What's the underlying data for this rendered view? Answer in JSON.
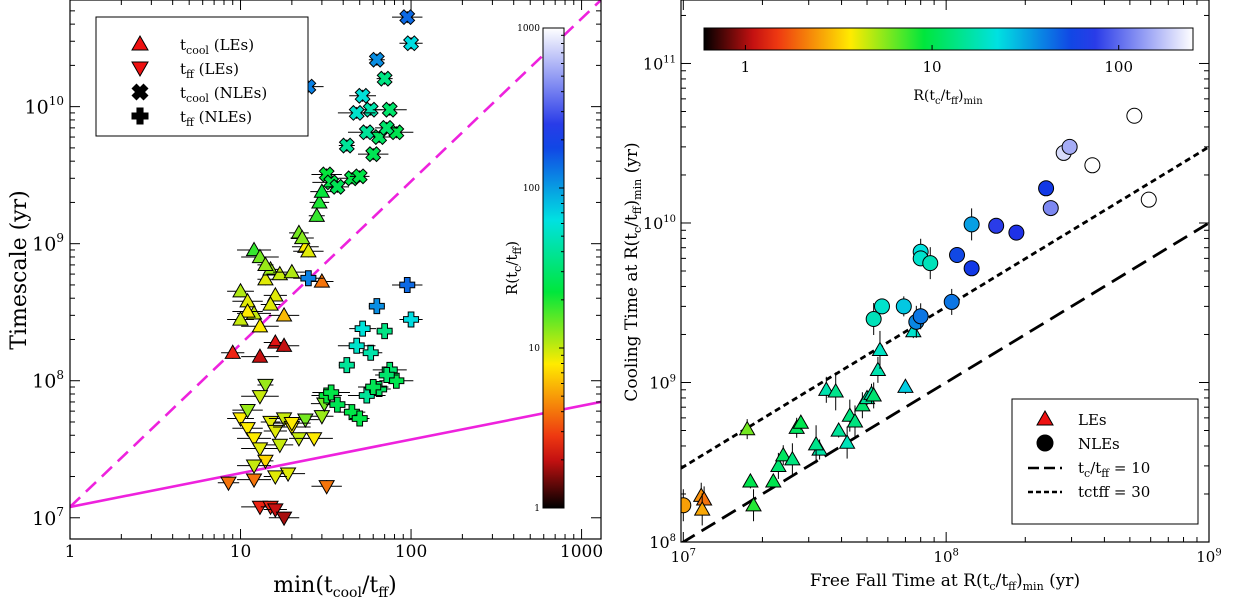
{
  "chart_data": [
    {
      "type": "scatter",
      "xscale": "log",
      "yscale": "log",
      "xlim": [
        1,
        1300
      ],
      "ylim": [
        7000000.0,
        60000000000.0
      ],
      "xlabel": {
        "main": "min(t",
        "sub1": "cool",
        "mid": "/t",
        "sub2": "ff",
        "end": ")"
      },
      "ylabel": "Timescale (yr)",
      "xticks": [
        {
          "v": 1,
          "t": "1"
        },
        {
          "v": 10,
          "t": "10"
        },
        {
          "v": 100,
          "t": "100"
        },
        {
          "v": 1000,
          "t": "1000"
        }
      ],
      "yticks": [
        {
          "v": 10000000.0,
          "b": "10",
          "e": "7"
        },
        {
          "v": 100000000.0,
          "b": "10",
          "e": "8"
        },
        {
          "v": 1000000000.0,
          "b": "10",
          "e": "9"
        },
        {
          "v": 10000000000.0,
          "b": "10",
          "e": "10"
        }
      ],
      "legend": [
        {
          "marker": "triangle-up",
          "color": "#ee1111",
          "main": "t",
          "sub": "cool",
          "rest": " (LEs)"
        },
        {
          "marker": "triangle-down",
          "color": "#ee1111",
          "main": "t",
          "sub": "ff",
          "rest": " (LEs)"
        },
        {
          "marker": "x",
          "color": "#000000",
          "main": "t",
          "sub": "cool",
          "rest": " (NLEs)"
        },
        {
          "marker": "plus",
          "color": "#000000",
          "main": "t",
          "sub": "ff",
          "rest": " (NLEs)"
        }
      ],
      "colorbar": {
        "scale": "log",
        "range": [
          1,
          1000
        ],
        "label": {
          "main": "R(t",
          "sub1": "c",
          "mid": "/t",
          "sub2": "ff",
          "end": ")"
        },
        "ticks": [
          {
            "v": 1,
            "t": "1"
          },
          {
            "v": 10,
            "t": "10"
          },
          {
            "v": 100,
            "t": "100"
          },
          {
            "v": 1000,
            "t": "1000"
          }
        ]
      },
      "lines": [
        {
          "style": "dashed",
          "color": "#ee22dd",
          "x": [
            1,
            1300
          ],
          "y": [
            12000000.0,
            60000000000.0
          ]
        },
        {
          "style": "solid",
          "color": "#ee22dd",
          "x": [
            1,
            1300
          ],
          "y": [
            12000000.0,
            70000000.0
          ]
        }
      ],
      "series": [
        {
          "marker": "triangle-up",
          "points": [
            [
              9,
              160000000.0,
              2.5
            ],
            [
              13,
              150000000.0,
              2.0
            ],
            [
              16,
              190000000.0,
              2.2
            ],
            [
              18,
              180000000.0,
              2.0
            ],
            [
              30,
              530000000.0,
              4.0
            ],
            [
              10,
              450000000.0,
              11
            ],
            [
              11,
              380000000.0,
              9
            ],
            [
              12,
              310000000.0,
              10
            ],
            [
              13,
              250000000.0,
              8
            ],
            [
              14,
              550000000.0,
              9
            ],
            [
              15,
              650000000.0,
              12
            ],
            [
              16,
              420000000.0,
              9
            ],
            [
              12,
              900000000.0,
              18
            ],
            [
              13,
              800000000.0,
              14
            ],
            [
              14,
              700000000.0,
              12
            ],
            [
              17,
              600000000.0,
              10
            ],
            [
              20,
              620000000.0,
              11
            ],
            [
              22,
              1200000000.0,
              14
            ],
            [
              24,
              950000000.0,
              8
            ],
            [
              25,
              880000000.0,
              9
            ],
            [
              28,
              1600000000.0,
              18
            ],
            [
              29,
              2000000000.0,
              20
            ],
            [
              30,
              2400000000.0,
              22
            ],
            [
              11,
              320000000.0,
              8
            ],
            [
              18,
              300000000.0,
              6
            ],
            [
              15,
              360000000.0,
              9
            ],
            [
              10,
              280000000.0,
              10
            ],
            [
              23,
              1100000000.0,
              13
            ]
          ]
        },
        {
          "marker": "triangle-down",
          "points": [
            [
              8.5,
              18000000.0,
              4.0
            ],
            [
              12,
              19000000.0,
              4.0
            ],
            [
              32,
              17000000.0,
              4.0
            ],
            [
              13,
              12000000.0,
              2.5
            ],
            [
              15,
              12000000.0,
              2.5
            ],
            [
              16,
              11500000.0,
              2.0
            ],
            [
              18,
              10000000.0,
              1.8
            ],
            [
              10,
              53000000.0,
              8
            ],
            [
              11,
              45000000.0,
              8
            ],
            [
              12,
              38000000.0,
              8
            ],
            [
              13,
              32000000.0,
              9
            ],
            [
              14,
              26000000.0,
              7
            ],
            [
              15,
              50000000.0,
              9
            ],
            [
              16,
              43000000.0,
              9
            ],
            [
              17,
              34000000.0,
              10
            ],
            [
              18,
              53000000.0,
              10
            ],
            [
              19,
              21000000.0,
              9
            ],
            [
              20,
              46000000.0,
              8
            ],
            [
              22,
              38000000.0,
              10
            ],
            [
              24,
              52000000.0,
              14
            ],
            [
              27,
              38000000.0,
              8
            ],
            [
              30,
              55000000.0,
              12
            ],
            [
              31,
              68000000.0,
              14
            ],
            [
              12,
              24000000.0,
              10
            ],
            [
              14,
              93000000.0,
              12
            ],
            [
              11,
              61000000.0,
              12
            ],
            [
              13,
              77000000.0,
              10
            ],
            [
              20,
              49000000.0,
              8
            ],
            [
              16,
              20000000.0,
              9
            ]
          ]
        },
        {
          "marker": "x",
          "points": [
            [
              25,
              14000000000.0,
              120
            ],
            [
              95,
              45000000000.0,
              140
            ],
            [
              100,
              29000000000.0,
              65
            ],
            [
              63,
              22000000000.0,
              110
            ],
            [
              52,
              12000000000.0,
              60
            ],
            [
              70,
              16000000000.0,
              35
            ],
            [
              58,
              9500000000.0,
              45
            ],
            [
              75,
              9500000000.0,
              30
            ],
            [
              48,
              9000000000.0,
              55
            ],
            [
              82,
              6500000000.0,
              25
            ],
            [
              65,
              6000000000.0,
              28
            ],
            [
              55,
              6500000000.0,
              40
            ],
            [
              42,
              5200000000.0,
              40
            ],
            [
              32,
              3200000000.0,
              22
            ],
            [
              34,
              2800000000.0,
              24
            ],
            [
              37,
              2600000000.0,
              26
            ],
            [
              45,
              3000000000.0,
              24
            ],
            [
              50,
              3100000000.0,
              24
            ],
            [
              60,
              4500000000.0,
              26
            ],
            [
              72,
              7000000000.0,
              30
            ]
          ]
        },
        {
          "marker": "plus",
          "points": [
            [
              25,
              560000000.0,
              120
            ],
            [
              95,
              500000000.0,
              140
            ],
            [
              100,
              280000000.0,
              65
            ],
            [
              63,
              350000000.0,
              110
            ],
            [
              52,
              240000000.0,
              60
            ],
            [
              70,
              230000000.0,
              35
            ],
            [
              58,
              160000000.0,
              45
            ],
            [
              75,
              120000000.0,
              30
            ],
            [
              48,
              180000000.0,
              55
            ],
            [
              82,
              100000000.0,
              25
            ],
            [
              65,
              87000000.0,
              28
            ],
            [
              55,
              78000000.0,
              40
            ],
            [
              42,
              130000000.0,
              40
            ],
            [
              32,
              78000000.0,
              22
            ],
            [
              34,
              82000000.0,
              24
            ],
            [
              37,
              67000000.0,
              26
            ],
            [
              45,
              59000000.0,
              24
            ],
            [
              50,
              53000000.0,
              24
            ],
            [
              60,
              90000000.0,
              26
            ],
            [
              72,
              110000000.0,
              30
            ]
          ]
        }
      ]
    },
    {
      "type": "scatter",
      "xscale": "log",
      "yscale": "log",
      "xlim": [
        9800000.0,
        1000000000.0
      ],
      "ylim": [
        100000000.0,
        250000000000.0
      ],
      "xlabel": {
        "main": "Free Fall Time at R(t",
        "sub1": "c",
        "mid": "/t",
        "sub2": "ff",
        "end": ")",
        "sub3": "min",
        "tail": " (yr)"
      },
      "ylabel": {
        "main": "Cooling Time at R(t",
        "sub1": "c",
        "mid": "/t",
        "sub2": "ff",
        "end": ")",
        "sub3": "min",
        "tail": " (yr)"
      },
      "xticks": [
        {
          "v": 10000000.0,
          "b": "10",
          "e": "7"
        },
        {
          "v": 100000000.0,
          "b": "10",
          "e": "8"
        },
        {
          "v": 1000000000.0,
          "b": "10",
          "e": "9"
        }
      ],
      "yticks": [
        {
          "v": 100000000.0,
          "b": "10",
          "e": "8"
        },
        {
          "v": 1000000000.0,
          "b": "10",
          "e": "9"
        },
        {
          "v": 10000000000.0,
          "b": "10",
          "e": "10"
        },
        {
          "v": 100000000000.0,
          "b": "10",
          "e": "11"
        }
      ],
      "legend": [
        {
          "marker": "triangle-up",
          "color": "#ee1111",
          "text": "LEs"
        },
        {
          "marker": "circle",
          "color": "#000000",
          "text": "NLEs"
        },
        {
          "marker": "long-dash",
          "color": "#000000",
          "main": "t",
          "sub": "c",
          "mid": "/t",
          "sub2": "ff",
          "rest": " = 10"
        },
        {
          "marker": "short-dash",
          "color": "#000000",
          "text": "tctff = 30"
        }
      ],
      "colorbar": {
        "scale": "log",
        "range": [
          0.6,
          250
        ],
        "label": {
          "main": "R(t",
          "sub1": "c",
          "mid": "/t",
          "sub2": "ff",
          "end": ")",
          "sub3": "min"
        },
        "ticks": [
          {
            "v": 1,
            "t": "1"
          },
          {
            "v": 10,
            "t": "10"
          },
          {
            "v": 100,
            "t": "100"
          }
        ]
      },
      "lines": [
        {
          "style": "long-dash",
          "color": "#000000",
          "x": [
            9800000.0,
            1000000000.0
          ],
          "y": [
            98000000.0,
            10000000000.0
          ]
        },
        {
          "style": "short-dash",
          "color": "#000000",
          "x": [
            9800000.0,
            1000000000.0
          ],
          "y": [
            290000000.0,
            30000000000.0
          ]
        }
      ],
      "series": [
        {
          "marker": "triangle-up",
          "points": [
            [
              11700000.0,
              195000000.0,
              2.3
            ],
            [
              12000000.0,
              185000000.0,
              2.0
            ],
            [
              11800000.0,
              160000000.0,
              2.6
            ],
            [
              17500000.0,
              510000000.0,
              6
            ],
            [
              18000000.0,
              240000000.0,
              10
            ],
            [
              18500000.0,
              170000000.0,
              8
            ],
            [
              22000000.0,
              240000000.0,
              10
            ],
            [
              23000000.0,
              300000000.0,
              12
            ],
            [
              24000000.0,
              350000000.0,
              11
            ],
            [
              26000000.0,
              330000000.0,
              13
            ],
            [
              27000000.0,
              520000000.0,
              11
            ],
            [
              28000000.0,
              560000000.0,
              10
            ],
            [
              33000000.0,
              380000000.0,
              16
            ],
            [
              35000000.0,
              900000000.0,
              17
            ],
            [
              38000000.0,
              880000000.0,
              14
            ],
            [
              39000000.0,
              500000000.0,
              15
            ],
            [
              42000000.0,
              420000000.0,
              18
            ],
            [
              43000000.0,
              620000000.0,
              13
            ],
            [
              48000000.0,
              720000000.0,
              12
            ],
            [
              50000000.0,
              800000000.0,
              15
            ],
            [
              52000000.0,
              850000000.0,
              16
            ],
            [
              55000000.0,
              1200000000.0,
              17
            ],
            [
              56000000.0,
              1600000000.0,
              19
            ],
            [
              70000000.0,
              940000000.0,
              25
            ],
            [
              75000000.0,
              2100000000.0,
              20
            ],
            [
              53000000.0,
              830000000.0,
              12
            ],
            [
              32000000.0,
              410000000.0,
              14
            ],
            [
              45000000.0,
              570000000.0,
              13
            ]
          ]
        },
        {
          "marker": "circle",
          "points": [
            [
              10000000.0,
              170000000.0,
              2.5
            ],
            [
              53000000.0,
              2500000000.0,
              18
            ],
            [
              57000000.0,
              3000000000.0,
              20
            ],
            [
              69000000.0,
              3000000000.0,
              26
            ],
            [
              77000000.0,
              2400000000.0,
              38
            ],
            [
              80000000.0,
              2600000000.0,
              42
            ],
            [
              80000000.0,
              6600000000.0,
              22
            ],
            [
              80000000.0,
              6000000000.0,
              20
            ],
            [
              87000000.0,
              5600000000.0,
              18
            ],
            [
              105000000.0,
              3200000000.0,
              42
            ],
            [
              110000000.0,
              6300000000.0,
              55
            ],
            [
              125000000.0,
              5200000000.0,
              60
            ],
            [
              125000000.0,
              9800000000.0,
              33
            ],
            [
              155000000.0,
              9600000000.0,
              75
            ],
            [
              185000000.0,
              8700000000.0,
              70
            ],
            [
              240000000.0,
              16500000000.0,
              60
            ],
            [
              250000000.0,
              12400000000.0,
              120
            ],
            [
              280000000.0,
              27500000000.0,
              200
            ],
            [
              295000000.0,
              30000000000.0,
              150
            ],
            [
              360000000.0,
              23000000000.0,
              260
            ],
            [
              520000000.0,
              47000000000.0,
              300
            ],
            [
              590000000.0,
              14000000000.0,
              300
            ]
          ]
        }
      ]
    }
  ]
}
